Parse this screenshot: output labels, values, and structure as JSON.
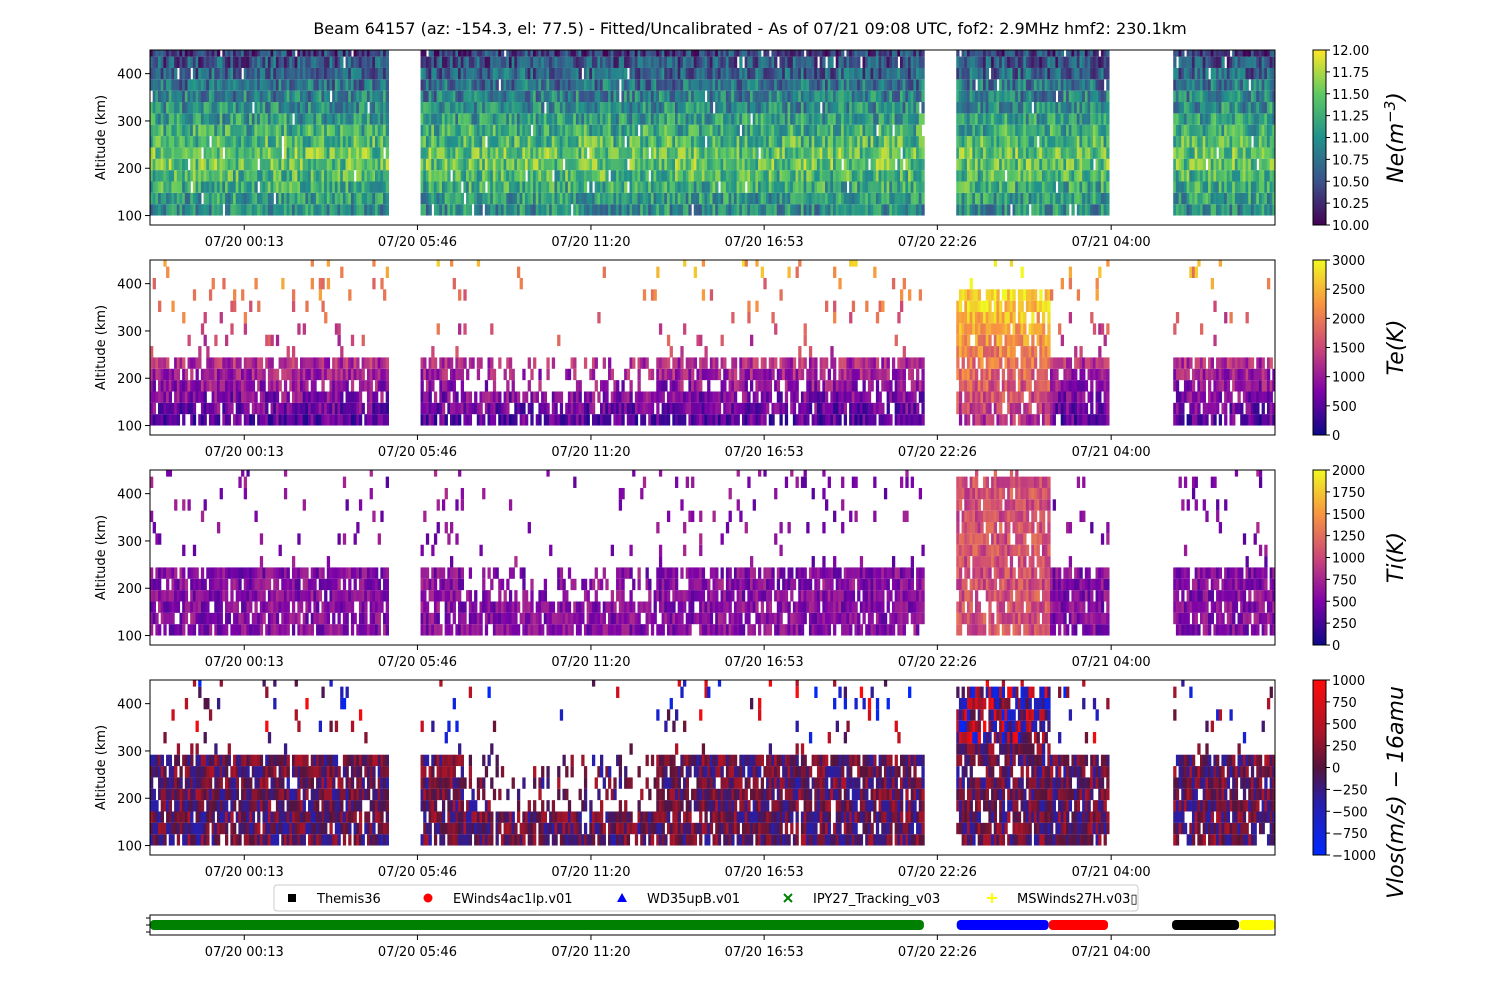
{
  "chart_data": {
    "type": "heatmap",
    "title": "Beam 64157 (az: -154.3, el: 77.5) - Fitted/Uncalibrated - As of 07/21 09:08 UTC, fof2: 2.9MHz  hmf2: 230.1km",
    "time_ticks": [
      "07/20 00:13",
      "07/20 05:46",
      "07/20 11:20",
      "07/20 16:53",
      "07/20 22:26",
      "07/21 04:00"
    ],
    "time_tick_hours": [
      0.22,
      5.77,
      11.33,
      16.88,
      22.43,
      28.0
    ],
    "time_range_hours": [
      -2.8,
      33.25
    ],
    "data_gaps_hours": [
      [
        4.8,
        5.87
      ],
      [
        22.0,
        23.05
      ],
      [
        27.9,
        29.95
      ]
    ],
    "ylabel": "Altitude (km)",
    "ylim": [
      80,
      450
    ],
    "yticks": [
      100,
      200,
      300,
      400
    ],
    "panels": [
      {
        "name": "Ne",
        "colorbar_label": "Ne(m^-3)",
        "colorbar_label_main": "Ne(m",
        "colorbar_label_sup": "−3",
        "colorbar_label_close": ")",
        "colormap": "viridis",
        "range": [
          10.0,
          12.0
        ],
        "ticks": [
          "10.00",
          "10.25",
          "10.50",
          "10.75",
          "11.00",
          "11.25",
          "11.50",
          "11.75",
          "12.00"
        ],
        "altitude_top_km": 450,
        "peak_altitude_km": 220
      },
      {
        "name": "Te",
        "colorbar_label": "Te(K)",
        "colormap": "plasma",
        "range": [
          0,
          3000
        ],
        "ticks": [
          "0",
          "500",
          "1000",
          "1500",
          "2000",
          "2500",
          "3000"
        ],
        "altitude_top_km": 265
      },
      {
        "name": "Ti",
        "colorbar_label": "Ti(K)",
        "colormap": "plasma",
        "range": [
          0,
          2000
        ],
        "ticks": [
          "0",
          "250",
          "500",
          "750",
          "1000",
          "1250",
          "1500",
          "1750",
          "2000"
        ],
        "altitude_top_km": 265
      },
      {
        "name": "Vlos",
        "colorbar_label": "Vlos(m/s) − 16amu",
        "colormap": "bwr-dark",
        "range": [
          -1000,
          1000
        ],
        "ticks": [
          "−1000",
          "−750",
          "−500",
          "−250",
          "0",
          "250",
          "500",
          "750",
          "1000"
        ],
        "altitude_top_km": 310
      }
    ],
    "experiment_legend": [
      {
        "name": "Themis36",
        "marker": "square",
        "color": "#000000"
      },
      {
        "name": "EWinds4ac1lp.v01",
        "marker": "circle",
        "color": "#ff0000"
      },
      {
        "name": "WD35upB.v01",
        "marker": "triangle",
        "color": "#0000ff"
      },
      {
        "name": "IPY27_Tracking_v03",
        "marker": "x",
        "color": "#008000"
      },
      {
        "name": "MSWinds27H.v03▯",
        "marker": "plus",
        "color": "#ffff00"
      }
    ],
    "experiment_timeline": [
      {
        "name": "IPY27_Tracking_v03",
        "color": "#008000",
        "start_hours": -2.8,
        "end_hours": 22.0
      },
      {
        "name": "WD35upB.v01",
        "color": "#0000ff",
        "start_hours": 23.05,
        "end_hours": 26.0
      },
      {
        "name": "EWinds4ac1lp.v01",
        "color": "#ff0000",
        "start_hours": 26.0,
        "end_hours": 27.9
      },
      {
        "name": "Themis36",
        "color": "#000000",
        "start_hours": 29.95,
        "end_hours": 32.1
      },
      {
        "name": "MSWinds27H.v03▯",
        "color": "#ffff00",
        "start_hours": 32.1,
        "end_hours": 33.25
      }
    ]
  }
}
